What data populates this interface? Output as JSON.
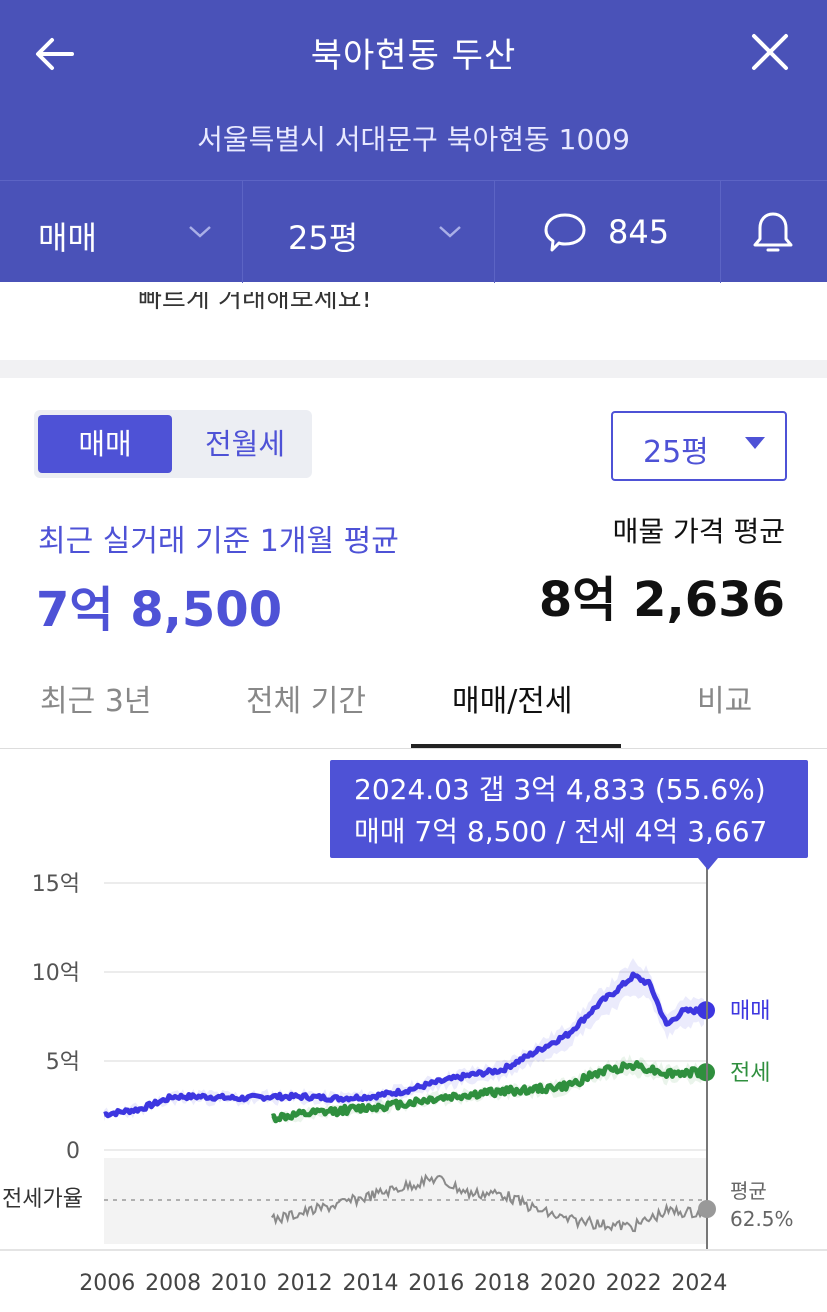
{
  "header": {
    "title": "북아현동 두산",
    "address": "서울특별시 서대문구 북아현동 1009"
  },
  "toolbar": {
    "deal_type": "매매",
    "size": "25평",
    "comment_count": "845"
  },
  "banner_partial": "빠르게 거래해보세요!",
  "toggle": {
    "active": "매매",
    "inactive": "전월세"
  },
  "size_select": "25평",
  "summary": {
    "recent_label": "최근 실거래 기준 1개월 평균",
    "recent_value": "7억 8,500",
    "listing_label": "매물 가격 평균",
    "listing_value": "8억 2,636"
  },
  "tabs": [
    "최근 3년",
    "전체 기간",
    "매매/전세",
    "비교"
  ],
  "active_tab": "매매/전세",
  "tooltip": {
    "line1": "2024.03  갭 3억 4,833 (55.6%)",
    "line2": "매매 7억 8,500 / 전세 4억 3,667"
  },
  "colors": {
    "brand": "#4a52b8",
    "sale": "#3d36e0",
    "jeonse": "#2f8f3e",
    "ratio": "#888888"
  },
  "chart_data": {
    "type": "line",
    "y_ticks": [
      "15억",
      "10억",
      "5억",
      "0"
    ],
    "ylim": [
      0,
      15
    ],
    "x_ticks": [
      "2006",
      "2008",
      "2010",
      "2012",
      "2014",
      "2016",
      "2018",
      "2020",
      "2022",
      "2024"
    ],
    "series": [
      {
        "name": "매매",
        "x": [
          2005.9,
          2007,
          2008,
          2009,
          2010,
          2011,
          2012,
          2013,
          2014,
          2015,
          2016,
          2017,
          2018,
          2019,
          2020,
          2021,
          2021.5,
          2022,
          2022.5,
          2023,
          2023.5,
          2024.2
        ],
        "values": [
          2.0,
          2.3,
          3.0,
          3.0,
          2.9,
          3.0,
          3.0,
          2.9,
          3.0,
          3.3,
          3.8,
          4.2,
          4.5,
          5.5,
          6.5,
          8.3,
          9.0,
          9.8,
          9.3,
          7.0,
          7.8,
          7.85
        ]
      },
      {
        "name": "전세",
        "x": [
          2011,
          2012,
          2013,
          2014,
          2015,
          2016,
          2017,
          2018,
          2019,
          2020,
          2021,
          2022,
          2023,
          2024.2
        ],
        "values": [
          1.8,
          2.0,
          2.2,
          2.4,
          2.6,
          2.9,
          3.1,
          3.3,
          3.4,
          3.6,
          4.4,
          4.8,
          4.3,
          4.37
        ]
      }
    ],
    "ratio": {
      "label": "전세가율",
      "average_label": "평균",
      "average_value": "62.5%"
    },
    "selected": "2024.03"
  }
}
